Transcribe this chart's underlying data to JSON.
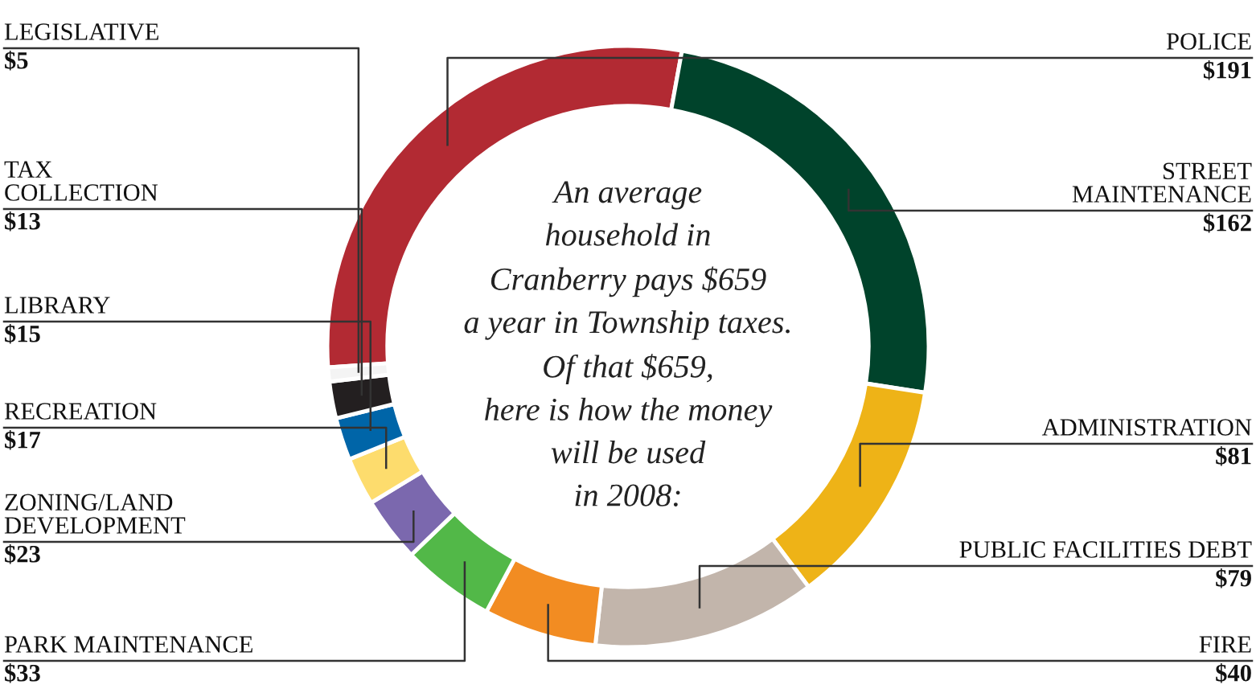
{
  "chart_data": {
    "type": "donut",
    "categories": [
      "POLICE",
      "STREET\nMAINTENANCE",
      "ADMINISTRATION",
      "PUBLIC FACILITIES DEBT",
      "FIRE",
      "PARK MAINTENANCE",
      "ZONING/LAND\nDEVELOPMENT",
      "RECREATION",
      "LIBRARY",
      "TAX\nCOLLECTION",
      "LEGISLATIVE"
    ],
    "values": [
      191,
      162,
      81,
      79,
      40,
      33,
      23,
      17,
      15,
      13,
      5
    ],
    "value_labels": [
      "$191",
      "$162",
      "$81",
      "$79",
      "$40",
      "$33",
      "$23",
      "$17",
      "$15",
      "$13",
      "$5"
    ],
    "colors": [
      "#b22a33",
      "#00432b",
      "#eeb317",
      "#c2b5ab",
      "#f28c22",
      "#52b848",
      "#7b68ae",
      "#fddc6d",
      "#0065a8",
      "#231f20",
      "#f4f4f4"
    ],
    "annotations": [
      "An average\nhousehold in\nCranberry pays $659\na year in Township taxes.\nOf that $659,\nhere is how the money\nwill be used\nin 2008:"
    ]
  }
}
